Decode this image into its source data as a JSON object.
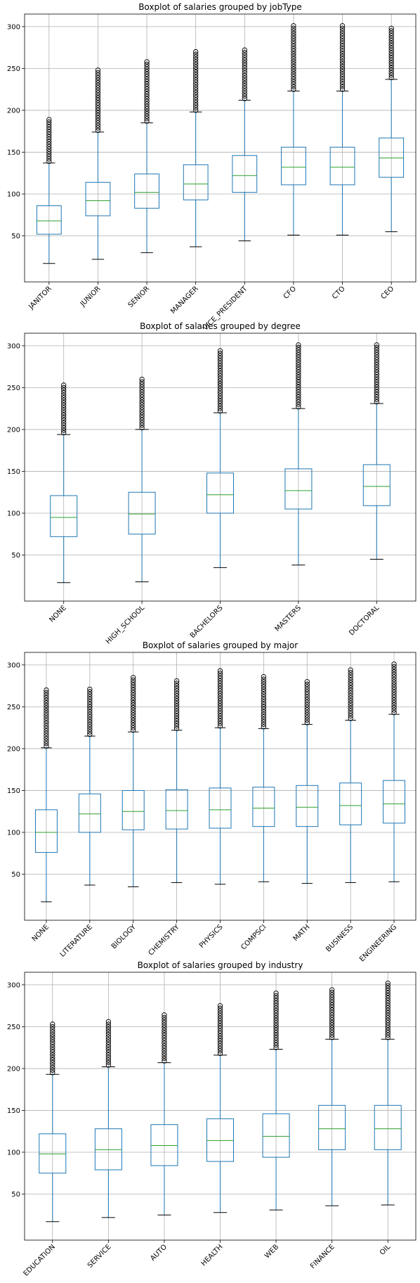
{
  "chart_data": [
    {
      "type": "boxplot",
      "title": "Boxplot of salaries grouped by jobType",
      "xlabel": "",
      "ylabel": "",
      "ylim": [
        -5,
        315
      ],
      "yticks": [
        50,
        100,
        150,
        200,
        250,
        300
      ],
      "grid": true,
      "categories": [
        "JANITOR",
        "JUNIOR",
        "SENIOR",
        "MANAGER",
        "VICE_PRESIDENT",
        "CFO",
        "CTO",
        "CEO"
      ],
      "boxes": [
        {
          "whislo": 17,
          "q1": 52,
          "med": 68,
          "q3": 86,
          "whishi": 137,
          "flier_hi": 189
        },
        {
          "whislo": 22,
          "q1": 74,
          "med": 92,
          "q3": 114,
          "whishi": 174,
          "flier_hi": 248
        },
        {
          "whislo": 30,
          "q1": 83,
          "med": 102,
          "q3": 124,
          "whishi": 185,
          "flier_hi": 258
        },
        {
          "whislo": 37,
          "q1": 93,
          "med": 112,
          "q3": 135,
          "whishi": 198,
          "flier_hi": 270
        },
        {
          "whislo": 44,
          "q1": 102,
          "med": 122,
          "q3": 146,
          "whishi": 212,
          "flier_hi": 272
        },
        {
          "whislo": 51,
          "q1": 111,
          "med": 132,
          "q3": 156,
          "whishi": 223,
          "flier_hi": 301
        },
        {
          "whislo": 51,
          "q1": 111,
          "med": 132,
          "q3": 156,
          "whishi": 223,
          "flier_hi": 301
        },
        {
          "whislo": 55,
          "q1": 120,
          "med": 143,
          "q3": 167,
          "whishi": 237,
          "flier_hi": 298
        }
      ]
    },
    {
      "type": "boxplot",
      "title": "Boxplot of salaries grouped by degree",
      "xlabel": "",
      "ylabel": "",
      "ylim": [
        -5,
        315
      ],
      "yticks": [
        50,
        100,
        150,
        200,
        250,
        300
      ],
      "grid": true,
      "categories": [
        "NONE",
        "HIGH_SCHOOL",
        "BACHELORS",
        "MASTERS",
        "DOCTORAL"
      ],
      "boxes": [
        {
          "whislo": 17,
          "q1": 72,
          "med": 95,
          "q3": 121,
          "whishi": 194,
          "flier_hi": 253
        },
        {
          "whislo": 18,
          "q1": 75,
          "med": 99,
          "q3": 125,
          "whishi": 200,
          "flier_hi": 260
        },
        {
          "whislo": 35,
          "q1": 100,
          "med": 122,
          "q3": 148,
          "whishi": 220,
          "flier_hi": 294
        },
        {
          "whislo": 38,
          "q1": 105,
          "med": 127,
          "q3": 153,
          "whishi": 225,
          "flier_hi": 301
        },
        {
          "whislo": 45,
          "q1": 109,
          "med": 132,
          "q3": 158,
          "whishi": 231,
          "flier_hi": 301
        }
      ]
    },
    {
      "type": "boxplot",
      "title": "Boxplot of salaries grouped by major",
      "xlabel": "",
      "ylabel": "",
      "ylim": [
        -5,
        315
      ],
      "yticks": [
        50,
        100,
        150,
        200,
        250,
        300
      ],
      "grid": true,
      "categories": [
        "NONE",
        "LITERATURE",
        "BIOLOGY",
        "CHEMISTRY",
        "PHYSICS",
        "COMPSCI",
        "MATH",
        "BUSINESS",
        "ENGINEERING"
      ],
      "boxes": [
        {
          "whislo": 17,
          "q1": 76,
          "med": 100,
          "q3": 127,
          "whishi": 201,
          "flier_hi": 270
        },
        {
          "whislo": 37,
          "q1": 100,
          "med": 122,
          "q3": 146,
          "whishi": 215,
          "flier_hi": 271
        },
        {
          "whislo": 35,
          "q1": 103,
          "med": 125,
          "q3": 150,
          "whishi": 220,
          "flier_hi": 285
        },
        {
          "whislo": 40,
          "q1": 104,
          "med": 126,
          "q3": 151,
          "whishi": 222,
          "flier_hi": 281
        },
        {
          "whislo": 38,
          "q1": 105,
          "med": 127,
          "q3": 153,
          "whishi": 225,
          "flier_hi": 293
        },
        {
          "whislo": 41,
          "q1": 107,
          "med": 129,
          "q3": 154,
          "whishi": 224,
          "flier_hi": 286
        },
        {
          "whislo": 39,
          "q1": 107,
          "med": 130,
          "q3": 156,
          "whishi": 229,
          "flier_hi": 280
        },
        {
          "whislo": 40,
          "q1": 109,
          "med": 132,
          "q3": 159,
          "whishi": 234,
          "flier_hi": 294
        },
        {
          "whislo": 41,
          "q1": 111,
          "med": 134,
          "q3": 162,
          "whishi": 241,
          "flier_hi": 301
        }
      ]
    },
    {
      "type": "boxplot",
      "title": "Boxplot of salaries grouped by industry",
      "xlabel": "",
      "ylabel": "",
      "ylim": [
        -5,
        315
      ],
      "yticks": [
        50,
        100,
        150,
        200,
        250,
        300
      ],
      "grid": true,
      "categories": [
        "EDUCATION",
        "SERVICE",
        "AUTO",
        "HEALTH",
        "WEB",
        "FINANCE",
        "OIL"
      ],
      "boxes": [
        {
          "whislo": 17,
          "q1": 75,
          "med": 98,
          "q3": 122,
          "whishi": 193,
          "flier_hi": 253
        },
        {
          "whislo": 22,
          "q1": 79,
          "med": 103,
          "q3": 128,
          "whishi": 202,
          "flier_hi": 256
        },
        {
          "whislo": 25,
          "q1": 84,
          "med": 108,
          "q3": 133,
          "whishi": 207,
          "flier_hi": 264
        },
        {
          "whislo": 28,
          "q1": 89,
          "med": 114,
          "q3": 140,
          "whishi": 216,
          "flier_hi": 275
        },
        {
          "whislo": 31,
          "q1": 94,
          "med": 119,
          "q3": 146,
          "whishi": 223,
          "flier_hi": 290
        },
        {
          "whislo": 36,
          "q1": 103,
          "med": 128,
          "q3": 156,
          "whishi": 235,
          "flier_hi": 294
        },
        {
          "whislo": 37,
          "q1": 103,
          "med": 128,
          "q3": 156,
          "whishi": 235,
          "flier_hi": 302
        }
      ]
    }
  ],
  "style": {
    "box_color": "#1f77b4",
    "median_color": "#2ca02c",
    "grid_color": "#b0b0b0",
    "axis_color": "#000000",
    "flier_color": "#000000"
  }
}
